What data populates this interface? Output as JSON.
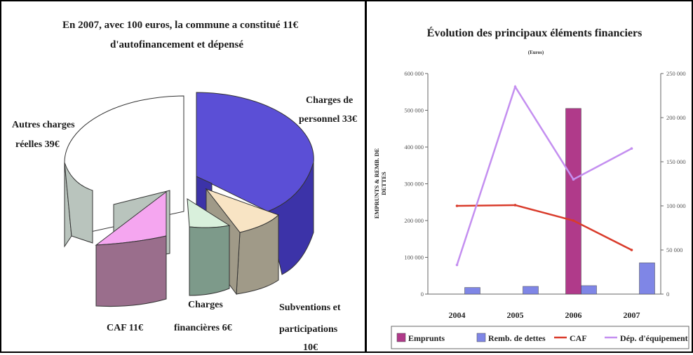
{
  "chart_data": [
    {
      "type": "pie",
      "title_line1": "En 2007, avec 100 euros, la commune a constitué 11€",
      "title_line2": "d'autofinancement  et dépensé",
      "slices": [
        {
          "name": "Charges de personnel",
          "label_line1": "Charges de",
          "label_line2": "personnel   33€",
          "value": 33,
          "color": "#5b4fd6"
        },
        {
          "name": "Subventions et participations",
          "label_line1": "Subventions et",
          "label_line2": "participations",
          "label_line3": "10€",
          "value": 10,
          "color": "#f8e4c4"
        },
        {
          "name": "Charges financières",
          "label_line1": "Charges",
          "label_line2": "financières    6€",
          "value": 6,
          "color": "#d9f0dc"
        },
        {
          "name": "CAF",
          "label_line1": "CAF     11€",
          "value": 11,
          "color": "#f5a6f0"
        },
        {
          "name": "Autres charges réelles",
          "label_line1": "Autres charges",
          "label_line2": "réelles    39€",
          "value": 39,
          "color": "#ffffff"
        }
      ]
    },
    {
      "type": "bar+line",
      "title": "Évolution des principaux éléments financiers",
      "subtitle": "(Euros)",
      "ylabel_line1": "EMPRUNTS & REMB. DE",
      "ylabel_line2": "DETTES",
      "categories": [
        "2004",
        "2005",
        "2006",
        "2007"
      ],
      "left_axis": {
        "min": 0,
        "max": 600000,
        "ticks": [
          "0",
          "100 000",
          "200 000",
          "300 000",
          "400 000",
          "500 000",
          "600 000"
        ]
      },
      "right_axis": {
        "min": 0,
        "max": 250000,
        "ticks": [
          "0",
          "50 000",
          "100 000",
          "150 000",
          "200 000",
          "250 000"
        ]
      },
      "series": [
        {
          "name": "Emprunts",
          "kind": "bar",
          "axis": "left",
          "color": "#b03a8a",
          "values": [
            0,
            0,
            505000,
            0
          ]
        },
        {
          "name": "Remb. de dettes",
          "kind": "bar",
          "axis": "left",
          "color": "#7f86e6",
          "values": [
            18000,
            21000,
            23000,
            85000
          ]
        },
        {
          "name": "CAF",
          "kind": "line",
          "axis": "left",
          "color": "#d93b2b",
          "values": [
            240000,
            242000,
            200000,
            120000
          ]
        },
        {
          "name": "Dép. d'équipement",
          "kind": "line",
          "axis": "right",
          "color": "#c48ff0",
          "values": [
            33000,
            235000,
            130000,
            165000
          ]
        }
      ],
      "legend": [
        {
          "label": "Emprunts",
          "marker": "box",
          "color": "#b03a8a"
        },
        {
          "label": "Remb. de dettes",
          "marker": "box",
          "color": "#7f86e6"
        },
        {
          "label": "CAF",
          "marker": "line",
          "color": "#d93b2b"
        },
        {
          "label": "Dép. d'équipement",
          "marker": "line",
          "color": "#c48ff0"
        }
      ]
    }
  ]
}
